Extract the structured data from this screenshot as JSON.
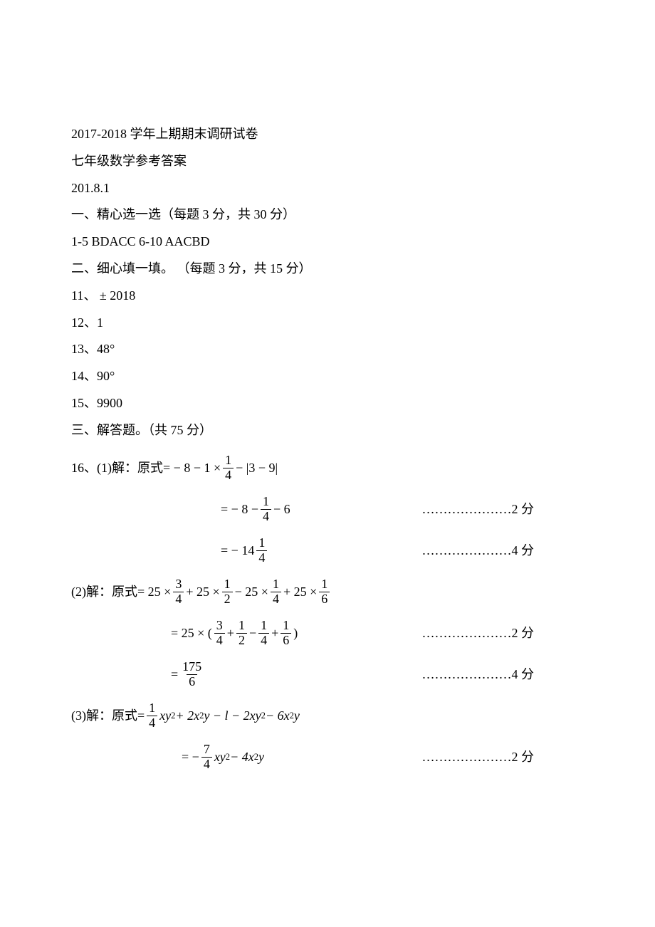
{
  "header": {
    "title": "2017-2018 学年上期期末调研试卷",
    "subtitle": "七年级数学参考答案",
    "date": "201.8.1"
  },
  "section1": {
    "heading": "一、精心选一选（每题 3 分，共 30 分）",
    "answers_line": "1-5   BDACC     6-10   AACBD"
  },
  "section2": {
    "heading": "二、细心填一填。   （每题 3 分，共 15 分）",
    "q11": "11、",
    "q11_val": "± 2018",
    "q12": "12、1",
    "q13": "13、48°",
    "q14": "14、90°",
    "q15": "15、9900"
  },
  "section3": {
    "heading": "三、解答题。（共 75 分）",
    "p16_1": {
      "prefix": "16、(1)解：原式",
      "step1": {
        "a": "= −",
        "b": "8 − 1 ×",
        "frac_n": "1",
        "frac_d": "4",
        "c": "− |3 − 9|"
      },
      "step2": {
        "a": "= −",
        "b": "8 −",
        "frac_n": "1",
        "frac_d": "4",
        "c": "− 6",
        "score": "…………………2 分"
      },
      "step3": {
        "a": "= −",
        "b": "14",
        "frac_n": "1",
        "frac_d": "4",
        "score": "…………………4 分"
      }
    },
    "p16_2": {
      "prefix": "(2)解：原式",
      "step1": {
        "a": "= 25 ×",
        "f1n": "3",
        "f1d": "4",
        "b": "+ 25 ×",
        "f2n": "1",
        "f2d": "2",
        "c": "− 25 ×",
        "f3n": "1",
        "f3d": "4",
        "d": "+ 25 ×",
        "f4n": "1",
        "f4d": "6"
      },
      "step2": {
        "a": "= 25 × (",
        "f1n": "3",
        "f1d": "4",
        "p1": "+",
        "f2n": "1",
        "f2d": "2",
        "p2": "−",
        "f3n": "1",
        "f3d": "4",
        "p3": "+",
        "f4n": "1",
        "f4d": "6",
        "b": ")",
        "score": "…………………2 分"
      },
      "step3": {
        "a": "=",
        "fn": "175",
        "fd": "6",
        "score": "…………………4 分"
      }
    },
    "p16_3": {
      "prefix": " (3)解：原式",
      "step1": {
        "a": "=",
        "fn": "1",
        "fd": "4",
        "b": "xy",
        "c": " + 2x",
        "d": "y  −  l  −  2xy",
        "e": "  −  6x",
        "f": "y",
        "sup2": "2"
      },
      "step2": {
        "a": "= −",
        "fn": "7",
        "fd": "4",
        "b": "xy",
        "c": " − 4x",
        "d": "y",
        "sup2": "2",
        "score": "…………………2 分"
      }
    }
  }
}
